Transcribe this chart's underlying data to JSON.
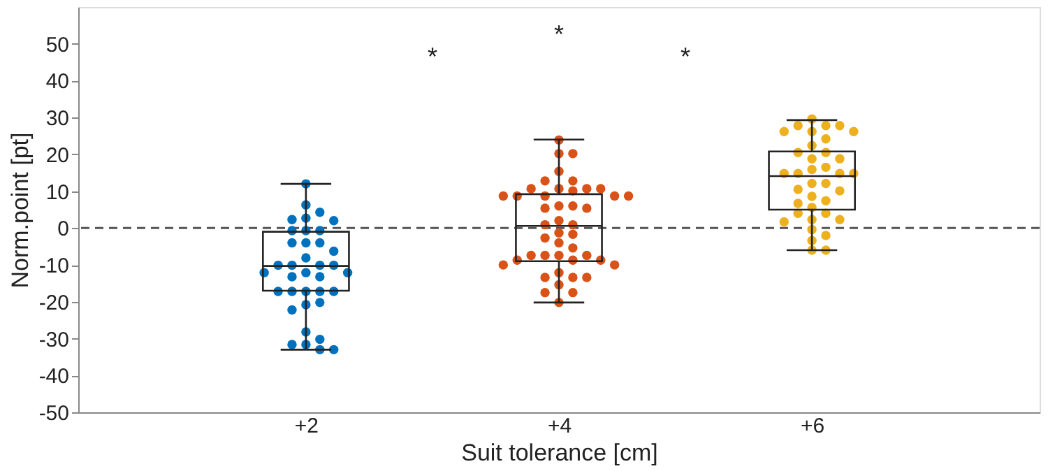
{
  "chart_data": {
    "type": "box",
    "xlabel": "Suit tolerance [cm]",
    "ylabel": "Norm.point [pt]",
    "categories": [
      "+2",
      "+4",
      "+6"
    ],
    "boxes": [
      {
        "low": -33,
        "q1": -17,
        "median": -10.3,
        "q3": -1,
        "high": 12
      },
      {
        "low": -20.2,
        "q1": -9,
        "median": 0.6,
        "q3": 9.2,
        "high": 24
      },
      {
        "low": -6,
        "q1": 5,
        "median": 14.1,
        "q3": 20.8,
        "high": 29.3
      }
    ],
    "series": [
      {
        "type": "scatter",
        "color": "#0072bd",
        "x": [
          "+2",
          "+2",
          "+2",
          "+2",
          "+2",
          "+2",
          "+2",
          "+2",
          "+2",
          "+2",
          "+2",
          "+2",
          "+2",
          "+2",
          "+2",
          "+2",
          "+2",
          "+2",
          "+2",
          "+2",
          "+2",
          "+2",
          "+2",
          "+2",
          "+2",
          "+2",
          "+2",
          "+2",
          "+2",
          "+2",
          "+2",
          "+2",
          "+2",
          "+2",
          "+2",
          "+2",
          "+2"
        ],
        "values": [
          12,
          6.3,
          4.3,
          2.7,
          2.3,
          2,
          -0.7,
          -0.7,
          -0.7,
          -4,
          -4,
          -4,
          -6.3,
          -8.1,
          -10.1,
          -10.1,
          -10.1,
          -10.1,
          -12.1,
          -12.1,
          -12.1,
          -13.2,
          -13.2,
          -17.2,
          -17.2,
          -17.2,
          -17.2,
          -17.2,
          -20.8,
          -20.2,
          -22.2,
          -28.2,
          -30.2,
          -31.6,
          -31.6,
          -33,
          -33
        ]
      },
      {
        "type": "scatter",
        "color": "#d95319",
        "x": [
          "+4",
          "+4",
          "+4",
          "+4",
          "+4",
          "+4",
          "+4",
          "+4",
          "+4",
          "+4",
          "+4",
          "+4",
          "+4",
          "+4",
          "+4",
          "+4",
          "+4",
          "+4",
          "+4",
          "+4",
          "+4",
          "+4",
          "+4",
          "+4",
          "+4",
          "+4",
          "+4",
          "+4",
          "+4",
          "+4",
          "+4",
          "+4",
          "+4",
          "+4",
          "+4",
          "+4",
          "+4",
          "+4",
          "+4",
          "+4",
          "+4",
          "+4",
          "+4",
          "+4",
          "+4"
        ],
        "values": [
          23.9,
          20.2,
          20.2,
          15.4,
          12.8,
          12.8,
          10.7,
          10.7,
          10.7,
          10.7,
          10.1,
          8.7,
          8.7,
          8.7,
          8.7,
          8.7,
          6,
          6,
          5.4,
          5.4,
          2,
          0.9,
          0.9,
          -1.3,
          -1.7,
          -2.7,
          -4,
          -5.4,
          -7.4,
          -7.4,
          -7.4,
          -7.4,
          -8.7,
          -8.7,
          -8.7,
          -10,
          -10,
          -12.1,
          -13.4,
          -13.4,
          -13.4,
          -15.4,
          -17.5,
          -17.5,
          -20.2
        ]
      },
      {
        "type": "scatter",
        "color": "#edb120",
        "x": [
          "+6",
          "+6",
          "+6",
          "+6",
          "+6",
          "+6",
          "+6",
          "+6",
          "+6",
          "+6",
          "+6",
          "+6",
          "+6",
          "+6",
          "+6",
          "+6",
          "+6",
          "+6",
          "+6",
          "+6",
          "+6",
          "+6",
          "+6",
          "+6",
          "+6",
          "+6",
          "+6",
          "+6",
          "+6",
          "+6",
          "+6",
          "+6",
          "+6",
          "+6",
          "+6",
          "+6",
          "+6"
        ],
        "values": [
          29.6,
          27.8,
          27.8,
          27.8,
          26.2,
          26.2,
          26.2,
          24.2,
          22.4,
          20.5,
          20.5,
          18.8,
          18.8,
          16.5,
          15.9,
          14.8,
          14.8,
          14.8,
          14.8,
          12.1,
          12.1,
          10.5,
          10.1,
          8.6,
          7.4,
          6.7,
          5.6,
          4,
          4,
          2.3,
          2.3,
          1.7,
          -0.4,
          -2,
          -3.4,
          -6,
          -6
        ]
      }
    ],
    "ylim": [
      -50,
      60
    ],
    "yticks": [
      -50,
      -40,
      -30,
      -20,
      -10,
      0,
      10,
      20,
      30,
      40,
      50
    ],
    "ref_lines": [
      {
        "axis": "y",
        "value": 0,
        "color": "#555555",
        "line_style": "dashed"
      }
    ],
    "annotations": [
      "*",
      "*",
      "*"
    ],
    "grid": false,
    "marker": "circle"
  }
}
